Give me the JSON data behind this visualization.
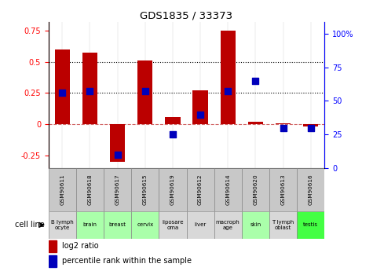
{
  "title": "GDS1835 / 33373",
  "samples": [
    "GSM90611",
    "GSM90618",
    "GSM90617",
    "GSM90615",
    "GSM90619",
    "GSM90612",
    "GSM90614",
    "GSM90620",
    "GSM90613",
    "GSM90616"
  ],
  "cell_lines": [
    "B lymph\nocyte",
    "brain",
    "breast",
    "cervix",
    "liposare\noma",
    "liver",
    "macroph\nage",
    "skin",
    "T lymph\noblast",
    "testis"
  ],
  "cell_line_colors": [
    "#d8d8d8",
    "#aaffaa",
    "#aaffaa",
    "#aaffaa",
    "#d8d8d8",
    "#d8d8d8",
    "#d8d8d8",
    "#aaffaa",
    "#d8d8d8",
    "#44ff44"
  ],
  "log2_ratio": [
    0.6,
    0.57,
    -0.3,
    0.51,
    0.06,
    0.27,
    0.75,
    0.02,
    0.01,
    -0.02
  ],
  "percentile_rank": [
    56,
    57,
    10,
    57,
    25,
    40,
    57,
    65,
    30,
    30
  ],
  "bar_color": "#bb0000",
  "dot_color": "#0000bb",
  "ylim_left": [
    -0.35,
    0.82
  ],
  "ylim_right": [
    0,
    109
  ],
  "yticks_left": [
    -0.25,
    0.0,
    0.25,
    0.5,
    0.75
  ],
  "ytick_labels_left": [
    "-0.25",
    "0",
    "0.25",
    "0.5",
    "0.75"
  ],
  "yticks_right": [
    0,
    25,
    50,
    75,
    100
  ],
  "ytick_labels_right": [
    "0",
    "25",
    "50",
    "75",
    "100%"
  ],
  "hline_dotted": [
    0.25,
    0.5
  ],
  "hline_zero": 0.0,
  "legend_log2": "log2 ratio",
  "legend_pct": "percentile rank within the sample",
  "cell_line_label": "cell line",
  "sample_box_color": "#c8c8c8",
  "bar_width": 0.55
}
